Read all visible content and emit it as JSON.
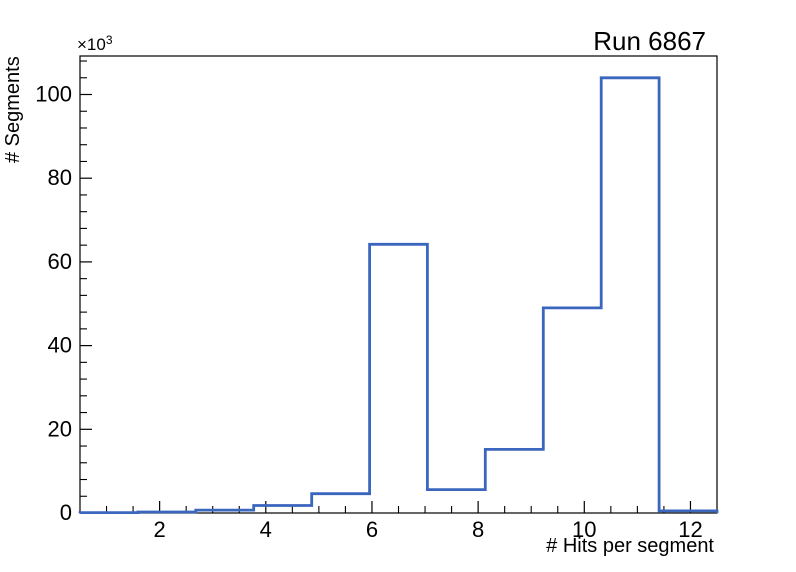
{
  "chart_data": {
    "type": "histogram",
    "title": "Run 6867",
    "xlabel": "# Hits per segment",
    "ylabel": "# Segments",
    "y_multiplier_base": "×10",
    "y_multiplier_exp": "3",
    "x_range": [
      0.5,
      12.5
    ],
    "y_range": [
      0,
      109200
    ],
    "bin_edges": [
      0.5,
      1.591,
      2.682,
      3.773,
      4.864,
      5.955,
      7.045,
      8.136,
      9.227,
      10.318,
      11.409,
      12.5
    ],
    "counts": [
      100,
      250,
      700,
      1800,
      4600,
      64200,
      5600,
      15200,
      49000,
      104000,
      500
    ],
    "x_major_ticks": [
      2,
      4,
      6,
      8,
      10,
      12
    ],
    "x_minor_step": 0.5,
    "y_major_ticks": [
      0,
      20000,
      40000,
      60000,
      80000,
      100000
    ],
    "y_tick_labels": [
      "0",
      "20",
      "40",
      "60",
      "80",
      "100"
    ],
    "y_minor_step": 4000,
    "grid": false,
    "legend": "none",
    "line_color": "#3a66bd",
    "axis_color": "#000000",
    "background_color": "#ffffff"
  }
}
